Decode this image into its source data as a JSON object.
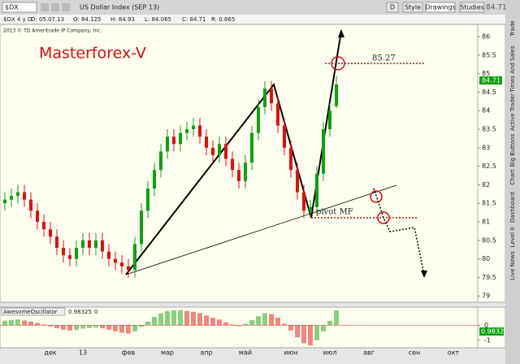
{
  "toolbar": {
    "symbol": "$DX",
    "description": "US Dollar Index (SEP 13)",
    "buttons": [
      "D",
      "Style",
      "Drawings",
      "Studies"
    ],
    "last_price": "84.71"
  },
  "info": [
    "$DX 4 y D",
    "D: 05.07.13",
    "O: 84.125",
    "H: 84.93",
    "L: 84.065",
    "C: 84.71",
    "R: 0.865"
  ],
  "side_tabs": [
    "Trade",
    "Times And Sales",
    "Active Trader",
    "Big Buttons",
    "Chart",
    "Dashboard",
    "Level II",
    "Live News"
  ],
  "chart_data": [
    {
      "type": "candlestick",
      "title": "Masterforex-V",
      "copyright": "2013 © TD Ameritrade IP Company, Inc.",
      "annotations": [
        "85.27",
        "pivot MF"
      ],
      "categories": [
        null,
        null,
        null,
        null,
        null,
        null,
        null,
        "дек",
        null,
        null,
        null,
        null,
        "13",
        null,
        null,
        null,
        null,
        null,
        null,
        "фев",
        null,
        null,
        null,
        null,
        null,
        "мар",
        null,
        null,
        null,
        null,
        null,
        "апр",
        null,
        null,
        null,
        null,
        null,
        "май",
        null,
        null,
        null,
        null,
        null,
        null,
        "июн",
        null,
        null,
        null,
        null,
        null,
        "июл",
        null,
        null,
        null,
        null,
        null,
        "авг",
        null,
        null,
        null,
        null,
        null,
        null,
        "сен",
        null,
        null,
        null,
        null,
        null,
        "окт",
        null,
        null,
        null
      ],
      "open": [
        81.5,
        81.6,
        81.7,
        81.8,
        81.6,
        81.3,
        81.0,
        80.8,
        80.6,
        80.3,
        80.1,
        80.0,
        80.3,
        80.5,
        80.3,
        80.5,
        80.2,
        80.0,
        79.9,
        79.8,
        79.7,
        80.4,
        81.3,
        81.9,
        82.4,
        82.9,
        83.3,
        83.1,
        83.4,
        83.5,
        83.6,
        83.3,
        83.0,
        82.8,
        83.1,
        82.7,
        82.4,
        82.1,
        82.6,
        83.4,
        84.1,
        84.6,
        84.2,
        83.6,
        83.0,
        82.4,
        81.8,
        81.3,
        81.4,
        82.3,
        83.5,
        84.125,
        null,
        null,
        null,
        null,
        null,
        null,
        null,
        null,
        null,
        null,
        null,
        null,
        null,
        null,
        null,
        null,
        null,
        null,
        null,
        null,
        null
      ],
      "high": [
        81.8,
        81.9,
        82.0,
        82.0,
        81.8,
        81.5,
        81.2,
        81.0,
        80.8,
        80.5,
        80.3,
        80.5,
        80.7,
        80.7,
        80.7,
        80.7,
        80.4,
        80.2,
        80.1,
        80.0,
        80.6,
        81.5,
        82.1,
        82.6,
        83.1,
        83.5,
        83.5,
        83.6,
        83.7,
        83.8,
        83.8,
        83.5,
        83.2,
        83.3,
        83.3,
        82.9,
        82.6,
        82.8,
        83.6,
        84.3,
        84.8,
        84.8,
        84.4,
        83.8,
        83.2,
        82.6,
        82.0,
        81.6,
        82.5,
        83.7,
        84.2,
        84.93,
        null,
        null,
        null,
        null,
        null,
        null,
        null,
        null,
        null,
        null,
        null,
        null,
        null,
        null,
        null,
        null,
        null,
        null,
        null,
        null,
        null
      ],
      "low": [
        81.3,
        81.4,
        81.5,
        81.4,
        81.1,
        80.8,
        80.6,
        80.4,
        80.1,
        79.9,
        79.8,
        79.8,
        80.1,
        80.1,
        80.1,
        80.0,
        79.8,
        79.7,
        79.6,
        79.5,
        79.5,
        80.2,
        81.1,
        81.7,
        82.2,
        82.7,
        82.9,
        82.9,
        83.2,
        83.3,
        83.1,
        82.8,
        82.6,
        82.6,
        82.5,
        82.2,
        81.9,
        81.9,
        82.4,
        83.2,
        83.9,
        84.0,
        83.4,
        82.8,
        82.2,
        81.6,
        81.1,
        81.1,
        81.2,
        82.1,
        83.3,
        84.065,
        null,
        null,
        null,
        null,
        null,
        null,
        null,
        null,
        null,
        null,
        null,
        null,
        null,
        null,
        null,
        null,
        null,
        null,
        null,
        null,
        null
      ],
      "close": [
        81.6,
        81.7,
        81.8,
        81.6,
        81.3,
        81.0,
        80.8,
        80.6,
        80.3,
        80.1,
        80.0,
        80.3,
        80.5,
        80.3,
        80.5,
        80.2,
        80.0,
        79.9,
        79.8,
        79.7,
        80.4,
        81.3,
        81.9,
        82.4,
        82.9,
        83.3,
        83.1,
        83.4,
        83.5,
        83.6,
        83.3,
        83.0,
        82.8,
        83.1,
        82.7,
        82.4,
        82.1,
        82.6,
        83.4,
        84.1,
        84.6,
        84.2,
        83.6,
        83.0,
        82.4,
        81.8,
        81.3,
        81.4,
        82.3,
        83.5,
        84.0,
        84.71,
        null,
        null,
        null,
        null,
        null,
        null,
        null,
        null,
        null,
        null,
        null,
        null,
        null,
        null,
        null,
        null,
        null,
        null,
        null,
        null,
        null
      ],
      "up_color": "#10a010",
      "down_color": "#e01010",
      "ylim": [
        78.83,
        86.33
      ],
      "yticks": [
        79,
        79.5,
        80,
        80.5,
        81,
        81.5,
        82,
        82.5,
        83,
        83.5,
        84,
        84.5,
        85,
        85.5,
        86
      ]
    },
    {
      "type": "bar",
      "title": "AwesomeOscillator",
      "header_values": [
        "0.98325",
        "0"
      ],
      "axis_label": "0.9832",
      "values": [
        0.3,
        0.35,
        0.38,
        0.32,
        0.25,
        0.15,
        0.05,
        -0.08,
        -0.2,
        -0.3,
        -0.35,
        -0.3,
        -0.22,
        -0.18,
        -0.15,
        -0.2,
        -0.3,
        -0.4,
        -0.5,
        -0.55,
        -0.4,
        -0.1,
        0.25,
        0.55,
        0.8,
        0.95,
        1.0,
        1.02,
        0.95,
        0.9,
        0.8,
        0.65,
        0.5,
        0.38,
        0.2,
        0.05,
        -0.05,
        0.1,
        0.35,
        0.6,
        0.8,
        0.75,
        0.5,
        0.1,
        -0.35,
        -0.8,
        -1.2,
        -1.35,
        -1.0,
        -0.4,
        0.3,
        0.98325,
        null,
        null,
        null,
        null,
        null,
        null,
        null,
        null,
        null,
        null,
        null,
        null,
        null,
        null,
        null,
        null,
        null,
        null,
        null,
        null,
        null
      ],
      "up_color": "#10a010",
      "down_color": "#e01010",
      "ylim": [
        -1.5,
        1.1
      ],
      "yticks": [
        -1,
        0
      ]
    }
  ]
}
